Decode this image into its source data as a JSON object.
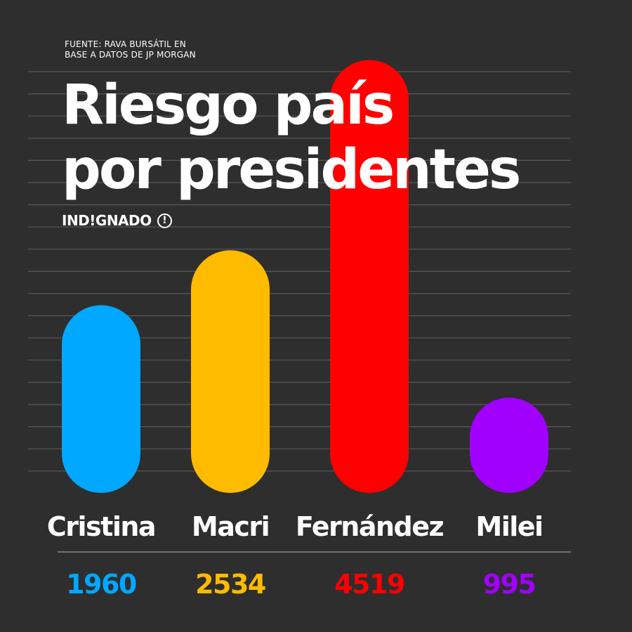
{
  "source": {
    "line1": "FUENTE: RAVA BURSÁTIL EN",
    "line2": "BASE A DATOS DE JP MORGAN"
  },
  "title": {
    "line1": "Riesgo país",
    "line2": "por presidentes"
  },
  "brand": {
    "name": "IND!GNADO",
    "mark": "!",
    "mark_icon": "exclamation-circle-icon"
  },
  "colors": {
    "background": "#2e2e2e",
    "gridline": "#595959",
    "text": "#ffffff"
  },
  "chart_data": {
    "type": "bar",
    "title": "Riesgo país por presidentes",
    "xlabel": "",
    "ylabel": "",
    "grid": true,
    "categories": [
      "Cristina",
      "Macri",
      "Fernández",
      "Milei"
    ],
    "values": [
      1960,
      2534,
      4519,
      995
    ],
    "value_labels": [
      "1960",
      "2534",
      "4519",
      "995"
    ],
    "colors": [
      "#00a8ff",
      "#ffbb00",
      "#ff0000",
      "#a100ff"
    ]
  }
}
